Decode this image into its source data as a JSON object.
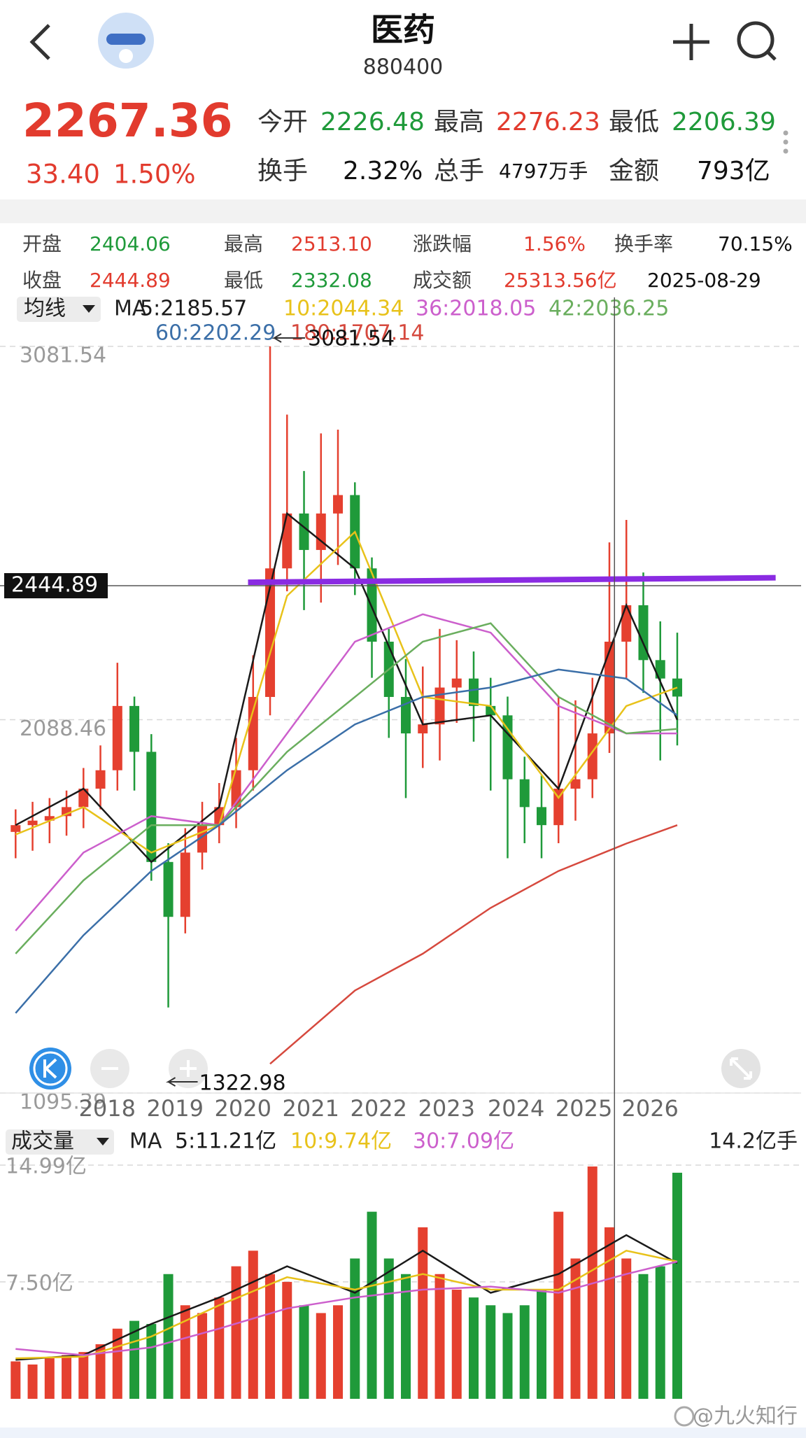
{
  "header": {
    "title": "医药",
    "code": "880400",
    "price": "2267.36",
    "change": "33.40",
    "change_pct": "1.50%",
    "stats": [
      {
        "label": "今开",
        "value": "2226.48"
      },
      {
        "label": "最高",
        "value": "2276.23"
      },
      {
        "label": "最低",
        "value": "2206.39"
      },
      {
        "label": "换手",
        "value": "2.32%"
      },
      {
        "label": "总手",
        "value": "4797万手"
      },
      {
        "label": "金额",
        "value": "793亿"
      }
    ]
  },
  "info": {
    "items": [
      {
        "label": "开盘",
        "value": "2404.06"
      },
      {
        "label": "最高",
        "value": "2513.10"
      },
      {
        "label": "涨跌幅",
        "value": "1.56%"
      },
      {
        "label": "换手率",
        "value": "70.15%"
      },
      {
        "label": "收盘",
        "value": "2444.89"
      },
      {
        "label": "最低",
        "value": "2332.08"
      },
      {
        "label": "成交额",
        "value": "25313.56亿"
      }
    ],
    "date": "2025-08-29"
  },
  "chart_data": [
    {
      "type": "candlestick",
      "legend_button": "均线",
      "ma_label": "MA",
      "up_color": "#e5402f",
      "down_color": "#1f9a3a",
      "open": [
        1790,
        1808,
        1820,
        1832,
        1856,
        1905,
        1954,
        2125,
        2003,
        1710,
        1564,
        1735,
        1808,
        1856,
        1954,
        2149,
        2491,
        2637,
        2540,
        2637,
        2686,
        2491,
        2296,
        2149,
        2052,
        2076,
        2174,
        2198,
        2125,
        2100,
        1930,
        1856,
        1808,
        1905,
        1930,
        2052,
        2296,
        2393,
        2247,
        2198
      ],
      "high": [
        1850,
        1870,
        1880,
        1900,
        1960,
        2020,
        2240,
        2150,
        2050,
        1760,
        1800,
        1870,
        1920,
        2040,
        2260,
        3081.54,
        2900,
        2750,
        2850,
        2860,
        2720,
        2520,
        2330,
        2250,
        2230,
        2330,
        2300,
        2270,
        2200,
        2150,
        1990,
        1940,
        2150,
        2140,
        2200,
        2560,
        2620,
        2480,
        2350,
        2320
      ],
      "low": [
        1720,
        1740,
        1760,
        1780,
        1800,
        1850,
        1900,
        1900,
        1660,
        1322.98,
        1520,
        1690,
        1760,
        1800,
        1900,
        2100,
        2430,
        2380,
        2400,
        2500,
        2420,
        2200,
        2040,
        1880,
        1960,
        1980,
        2080,
        2030,
        1900,
        1720,
        1760,
        1720,
        1760,
        1820,
        1880,
        2000,
        2200,
        2160,
        1980,
        2020
      ],
      "close": [
        1808,
        1820,
        1832,
        1856,
        1905,
        1954,
        2125,
        2003,
        1710,
        1564,
        1735,
        1808,
        1856,
        1954,
        2149,
        2491,
        2637,
        2540,
        2637,
        2686,
        2491,
        2296,
        2149,
        2052,
        2076,
        2174,
        2198,
        2125,
        2100,
        1930,
        1856,
        1808,
        1905,
        1930,
        2052,
        2296,
        2393,
        2247,
        2198,
        2150
      ],
      "xlim": [
        -0.92,
        46.3
      ],
      "xticks": [
        {
          "value": 5.4,
          "label": "2018"
        },
        {
          "value": 9.4,
          "label": "2019"
        },
        {
          "value": 13.4,
          "label": "2020"
        },
        {
          "value": 17.4,
          "label": "2021"
        },
        {
          "value": 21.4,
          "label": "2022"
        },
        {
          "value": 25.4,
          "label": "2023"
        },
        {
          "value": 29.5,
          "label": "2024"
        },
        {
          "value": 33.5,
          "label": "2025"
        },
        {
          "value": 37.4,
          "label": "2026"
        }
      ],
      "ylim": [
        1095.39,
        3081.54
      ],
      "yticks": [
        3081.54,
        2088.46,
        1095.39
      ],
      "grid": true,
      "ma": [
        {
          "name": "5:2185.57",
          "color": "#1a1a1a",
          "x": [
            0,
            4,
            8,
            12,
            16,
            20,
            24,
            28,
            32,
            36,
            39
          ],
          "values": [
            1808,
            1905,
            1710,
            1856,
            2637,
            2491,
            2076,
            2100,
            1905,
            2393,
            2088
          ]
        },
        {
          "name": "10:2044.34",
          "color": "#e8c21a",
          "x": [
            0,
            4,
            8,
            12,
            16,
            20,
            24,
            28,
            32,
            36,
            39
          ],
          "values": [
            1783,
            1856,
            1735,
            1808,
            2418,
            2588,
            2149,
            2125,
            1881,
            2125,
            2174
          ]
        },
        {
          "name": "36:2018.05",
          "color": "#cc5fcc",
          "x": [
            0,
            4,
            8,
            12,
            16,
            20,
            24,
            28,
            32,
            36,
            39
          ],
          "values": [
            1527,
            1735,
            1832,
            1808,
            2052,
            2296,
            2369,
            2320,
            2125,
            2052,
            2052
          ]
        },
        {
          "name": "42:2036.25",
          "color": "#6aae5e",
          "x": [
            0,
            4,
            8,
            12,
            16,
            20,
            24,
            28,
            32,
            36,
            39
          ],
          "values": [
            1466,
            1661,
            1808,
            1808,
            2003,
            2149,
            2296,
            2345,
            2149,
            2052,
            2064
          ]
        },
        {
          "name": "60:2202.29",
          "color": "#3b6fa8",
          "x": [
            0,
            4,
            8,
            12,
            16,
            20,
            24,
            28,
            32,
            36,
            39
          ],
          "values": [
            1308,
            1515,
            1686,
            1808,
            1954,
            2076,
            2149,
            2174,
            2222,
            2198,
            2100
          ]
        },
        {
          "name": "180:1707.14",
          "color": "#d6493e",
          "x": [
            15,
            20,
            24,
            28,
            32,
            36,
            39
          ],
          "values": [
            1173,
            1368,
            1466,
            1588,
            1686,
            1759,
            1808
          ]
        }
      ],
      "trend_line": {
        "color": "#8a2be2",
        "x": [
          13.7,
          44.8
        ],
        "values": [
          2454,
          2466
        ]
      },
      "crosshair": {
        "x": 35.3,
        "value": 2444.89
      }
    },
    {
      "type": "volume",
      "title": "成交量",
      "ma_label": "MA",
      "unit_label": "14.2亿手",
      "values": [
        2.4,
        2.2,
        2.6,
        2.8,
        3.0,
        3.5,
        4.5,
        5.0,
        4.8,
        8.0,
        6.0,
        5.5,
        6.5,
        8.5,
        9.5,
        8.0,
        7.5,
        6.0,
        5.5,
        6.0,
        9.0,
        12.0,
        9.0,
        8.0,
        11.0,
        8.0,
        7.0,
        6.5,
        6.0,
        5.5,
        6.0,
        7.0,
        12.0,
        9.0,
        14.9,
        11.0,
        9.0,
        8.0,
        8.5,
        14.5
      ],
      "ylim": [
        0,
        14.99
      ],
      "yticks": [
        {
          "value": 14.99,
          "label": "14.99亿"
        },
        {
          "value": 7.5,
          "label": "7.50亿"
        }
      ],
      "ma": [
        {
          "name": "5:11.21亿",
          "color": "#1a1a1a",
          "x": [
            0,
            4,
            8,
            12,
            16,
            20,
            24,
            28,
            32,
            36,
            39
          ],
          "values": [
            2.5,
            2.8,
            4.8,
            6.5,
            8.5,
            6.8,
            9.5,
            6.8,
            8.0,
            10.5,
            8.7
          ]
        },
        {
          "name": "10:9.74亿",
          "color": "#e8c21a",
          "x": [
            0,
            4,
            8,
            12,
            16,
            20,
            24,
            28,
            32,
            36,
            39
          ],
          "values": [
            2.6,
            2.7,
            4.0,
            6.0,
            7.8,
            7.0,
            8.0,
            7.0,
            7.0,
            9.5,
            8.8
          ]
        },
        {
          "name": "30:7.09亿",
          "color": "#cc5fcc",
          "x": [
            0,
            4,
            8,
            12,
            16,
            20,
            24,
            28,
            32,
            36,
            39
          ],
          "values": [
            3.2,
            2.8,
            3.3,
            4.5,
            5.8,
            6.5,
            7.0,
            7.2,
            6.8,
            8.0,
            8.8
          ]
        }
      ]
    }
  ],
  "watermark": "@九火知行"
}
